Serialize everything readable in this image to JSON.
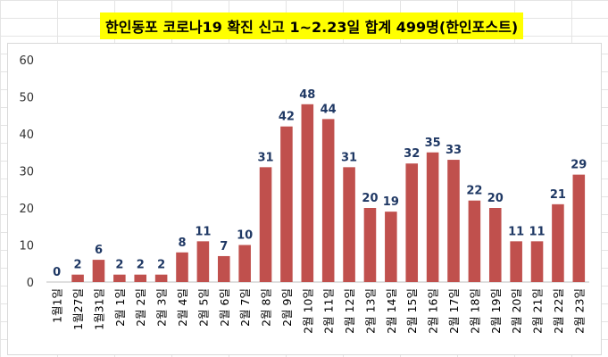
{
  "chart_data": {
    "type": "bar",
    "title": "한인동포 코로나19 확진 신고 1~2.23일 합계 499명(한인포스트)",
    "categories": [
      "1월1일",
      "1월27일",
      "1월31일",
      "2월 1일",
      "2월 2일",
      "2월 3일",
      "2월 4일",
      "2월 5일",
      "2월 6일",
      "2월 7일",
      "2월 8일",
      "2월 9일",
      "2월 10일",
      "2월 11일",
      "2월 12일",
      "2월 13일",
      "2월 14일",
      "2월 15일",
      "2월 16일",
      "2월 17일",
      "2월 18일",
      "2월 19일",
      "2월 20일",
      "2월 21일",
      "2월 22일",
      "2월 23일"
    ],
    "values": [
      0,
      2,
      6,
      2,
      2,
      2,
      8,
      11,
      7,
      10,
      31,
      42,
      48,
      44,
      31,
      20,
      19,
      32,
      35,
      33,
      22,
      20,
      11,
      11,
      21,
      29
    ],
    "ylim": [
      0,
      60
    ],
    "yticks": [
      0,
      10,
      20,
      30,
      40,
      50,
      60
    ],
    "grid": false,
    "legend": "none",
    "xlabel": "",
    "ylabel": "",
    "bar_color": "#c0504d",
    "label_color": "#1f3864"
  }
}
